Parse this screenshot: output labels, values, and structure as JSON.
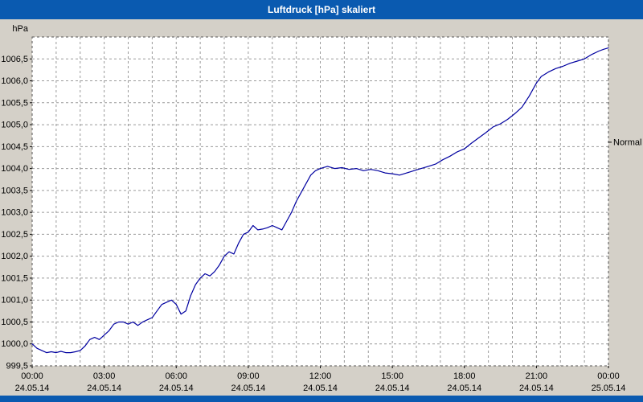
{
  "window": {
    "title": "Luftdruck [hPa] skaliert"
  },
  "colors": {
    "title_bar_bg": "#0a5ab0",
    "window_bg": "#d4d0c8",
    "plot_bg": "#ffffff",
    "grid": "#9a9a9a",
    "plot_border": "#555555",
    "line": "#0000a0",
    "text": "#000000"
  },
  "chart_data": {
    "type": "line",
    "title": "Luftdruck [hPa] skaliert",
    "unit_label": "hPa",
    "right_label": "Normal",
    "right_label_value": 1004.6,
    "xlabel": "",
    "ylabel": "hPa",
    "ylim": [
      999.5,
      1007.0
    ],
    "xlim_hours": [
      0,
      24
    ],
    "grid": true,
    "minor_x_step_hours": 1,
    "y_ticks": [
      {
        "value": 1006.5,
        "label": "1006,5"
      },
      {
        "value": 1006.0,
        "label": "1006,0"
      },
      {
        "value": 1005.5,
        "label": "1005,5"
      },
      {
        "value": 1005.0,
        "label": "1005,0"
      },
      {
        "value": 1004.5,
        "label": "1004,5"
      },
      {
        "value": 1004.0,
        "label": "1004,0"
      },
      {
        "value": 1003.5,
        "label": "1003,5"
      },
      {
        "value": 1003.0,
        "label": "1003,0"
      },
      {
        "value": 1002.5,
        "label": "1002,5"
      },
      {
        "value": 1002.0,
        "label": "1002,0"
      },
      {
        "value": 1001.5,
        "label": "1001,5"
      },
      {
        "value": 1001.0,
        "label": "1001,0"
      },
      {
        "value": 1000.5,
        "label": "1000,5"
      },
      {
        "value": 1000.0,
        "label": "1000,0"
      },
      {
        "value": 999.5,
        "label": "999,5"
      }
    ],
    "x_ticks": [
      {
        "hour": 0,
        "time": "00:00",
        "date": "24.05.14"
      },
      {
        "hour": 3,
        "time": "03:00",
        "date": "24.05.14"
      },
      {
        "hour": 6,
        "time": "06:00",
        "date": "24.05.14"
      },
      {
        "hour": 9,
        "time": "09:00",
        "date": "24.05.14"
      },
      {
        "hour": 12,
        "time": "12:00",
        "date": "24.05.14"
      },
      {
        "hour": 15,
        "time": "15:00",
        "date": "24.05.14"
      },
      {
        "hour": 18,
        "time": "18:00",
        "date": "24.05.14"
      },
      {
        "hour": 21,
        "time": "21:00",
        "date": "24.05.14"
      },
      {
        "hour": 24,
        "time": "00:00",
        "date": "25.05.14"
      }
    ],
    "series": [
      {
        "name": "Luftdruck",
        "color": "#0000a0",
        "points": [
          [
            0.0,
            1000.0
          ],
          [
            0.2,
            999.9
          ],
          [
            0.4,
            999.85
          ],
          [
            0.6,
            999.8
          ],
          [
            0.8,
            999.82
          ],
          [
            1.0,
            999.8
          ],
          [
            1.2,
            999.83
          ],
          [
            1.4,
            999.8
          ],
          [
            1.6,
            999.8
          ],
          [
            1.8,
            999.82
          ],
          [
            2.0,
            999.85
          ],
          [
            2.2,
            999.95
          ],
          [
            2.4,
            1000.1
          ],
          [
            2.6,
            1000.15
          ],
          [
            2.8,
            1000.1
          ],
          [
            3.0,
            1000.2
          ],
          [
            3.2,
            1000.3
          ],
          [
            3.4,
            1000.45
          ],
          [
            3.6,
            1000.5
          ],
          [
            3.8,
            1000.5
          ],
          [
            4.0,
            1000.45
          ],
          [
            4.2,
            1000.5
          ],
          [
            4.4,
            1000.42
          ],
          [
            4.6,
            1000.5
          ],
          [
            4.8,
            1000.55
          ],
          [
            5.0,
            1000.6
          ],
          [
            5.2,
            1000.75
          ],
          [
            5.4,
            1000.9
          ],
          [
            5.6,
            1000.95
          ],
          [
            5.8,
            1001.0
          ],
          [
            6.0,
            1000.9
          ],
          [
            6.2,
            1000.68
          ],
          [
            6.4,
            1000.75
          ],
          [
            6.6,
            1001.1
          ],
          [
            6.8,
            1001.35
          ],
          [
            7.0,
            1001.5
          ],
          [
            7.2,
            1001.6
          ],
          [
            7.4,
            1001.55
          ],
          [
            7.6,
            1001.65
          ],
          [
            7.8,
            1001.8
          ],
          [
            8.0,
            1002.0
          ],
          [
            8.2,
            1002.1
          ],
          [
            8.4,
            1002.05
          ],
          [
            8.6,
            1002.3
          ],
          [
            8.8,
            1002.5
          ],
          [
            9.0,
            1002.55
          ],
          [
            9.2,
            1002.7
          ],
          [
            9.4,
            1002.6
          ],
          [
            9.6,
            1002.62
          ],
          [
            9.8,
            1002.65
          ],
          [
            10.0,
            1002.7
          ],
          [
            10.2,
            1002.65
          ],
          [
            10.4,
            1002.6
          ],
          [
            10.6,
            1002.8
          ],
          [
            10.8,
            1003.0
          ],
          [
            11.0,
            1003.25
          ],
          [
            11.2,
            1003.45
          ],
          [
            11.4,
            1003.65
          ],
          [
            11.6,
            1003.85
          ],
          [
            11.8,
            1003.95
          ],
          [
            12.0,
            1004.0
          ],
          [
            12.3,
            1004.05
          ],
          [
            12.6,
            1004.0
          ],
          [
            12.9,
            1004.02
          ],
          [
            13.2,
            1003.98
          ],
          [
            13.5,
            1004.0
          ],
          [
            13.8,
            1003.95
          ],
          [
            14.1,
            1003.98
          ],
          [
            14.4,
            1003.95
          ],
          [
            14.7,
            1003.9
          ],
          [
            15.0,
            1003.88
          ],
          [
            15.3,
            1003.85
          ],
          [
            15.6,
            1003.9
          ],
          [
            15.9,
            1003.95
          ],
          [
            16.2,
            1004.0
          ],
          [
            16.5,
            1004.05
          ],
          [
            16.8,
            1004.1
          ],
          [
            17.1,
            1004.2
          ],
          [
            17.4,
            1004.28
          ],
          [
            17.7,
            1004.38
          ],
          [
            18.0,
            1004.45
          ],
          [
            18.3,
            1004.58
          ],
          [
            18.6,
            1004.7
          ],
          [
            18.9,
            1004.82
          ],
          [
            19.2,
            1004.95
          ],
          [
            19.5,
            1005.02
          ],
          [
            19.8,
            1005.12
          ],
          [
            20.1,
            1005.25
          ],
          [
            20.4,
            1005.4
          ],
          [
            20.7,
            1005.65
          ],
          [
            21.0,
            1005.95
          ],
          [
            21.2,
            1006.1
          ],
          [
            21.5,
            1006.2
          ],
          [
            21.8,
            1006.28
          ],
          [
            22.1,
            1006.33
          ],
          [
            22.4,
            1006.4
          ],
          [
            22.7,
            1006.45
          ],
          [
            23.0,
            1006.5
          ],
          [
            23.3,
            1006.6
          ],
          [
            23.6,
            1006.68
          ],
          [
            23.8,
            1006.72
          ],
          [
            24.0,
            1006.75
          ]
        ]
      }
    ]
  }
}
